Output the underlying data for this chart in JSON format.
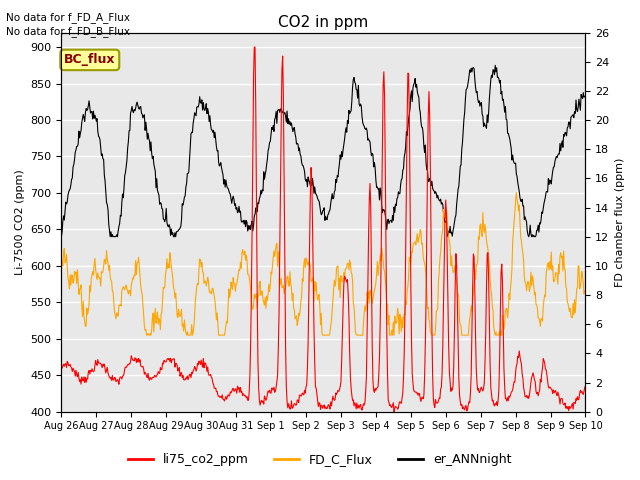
{
  "title": "CO2 in ppm",
  "ylabel_left": "Li-7500 CO2 (ppm)",
  "ylabel_right": "FD chamber flux (ppm)",
  "ylim_left": [
    400,
    920
  ],
  "ylim_right": [
    0,
    26
  ],
  "yticks_left": [
    400,
    450,
    500,
    550,
    600,
    650,
    700,
    750,
    800,
    850,
    900
  ],
  "yticks_right": [
    0,
    2,
    4,
    6,
    8,
    10,
    12,
    14,
    16,
    18,
    20,
    22,
    24,
    26
  ],
  "xtick_labels": [
    "Aug 26",
    "Aug 27",
    "Aug 28",
    "Aug 29",
    "Aug 30",
    "Aug 31",
    "Sep 1",
    "Sep 2",
    "Sep 3",
    "Sep 4",
    "Sep 5",
    "Sep 6",
    "Sep 7",
    "Sep 8",
    "Sep 9",
    "Sep 10"
  ],
  "text_no_data_1": "No data for f_FD_A_Flux",
  "text_no_data_2": "No data for f_FD_B_Flux",
  "bc_flux_label": "BC_flux",
  "bc_flux_box_color": "#FFFF99",
  "bc_flux_text_color": "#8B0000",
  "legend_labels": [
    "li75_co2_ppm",
    "FD_C_Flux",
    "er_ANNnight"
  ],
  "line_color_red": "#FF0000",
  "line_color_orange": "#FFA500",
  "line_color_black": "#000000",
  "bg_color": "#E8E8E8",
  "fig_bg_color": "#FFFFFF",
  "grid_color": "#FFFFFF"
}
